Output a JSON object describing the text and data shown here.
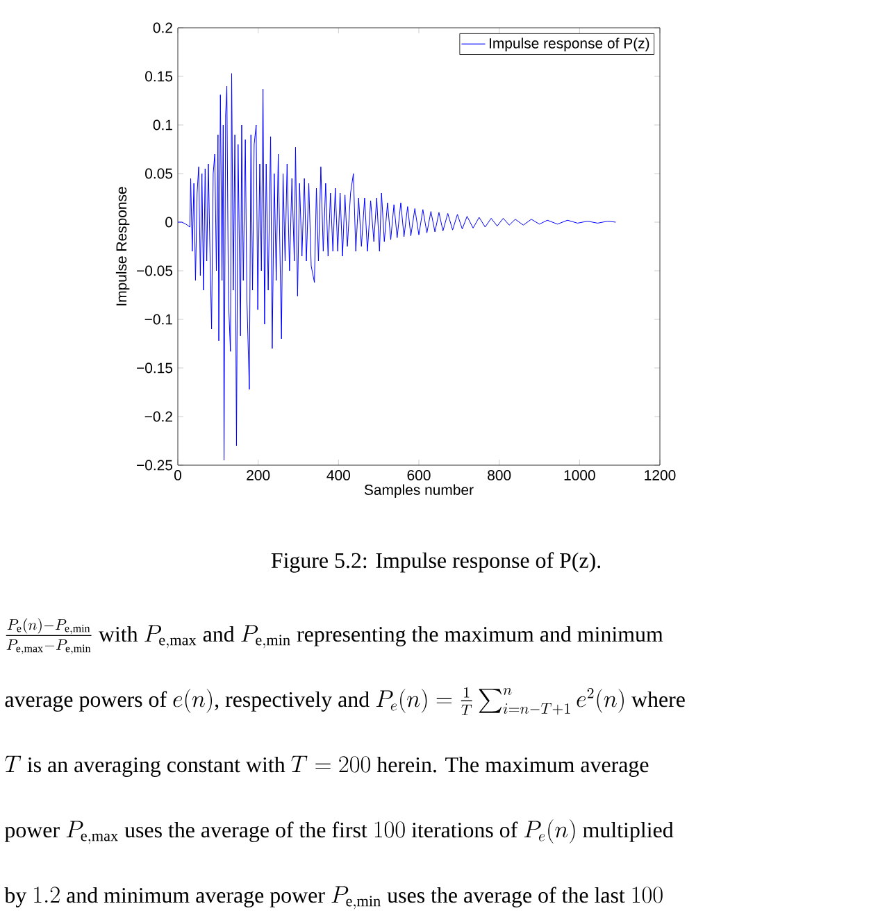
{
  "chart_data": {
    "type": "line",
    "xlabel": "Samples number",
    "ylabel": "Impulse Response",
    "xlim": [
      0,
      1200
    ],
    "xticks": [
      0,
      200,
      400,
      600,
      800,
      1000,
      1200
    ],
    "ylim": [
      -0.25,
      0.2
    ],
    "yticks": [
      {
        "value": -0.25,
        "label": "−0.25"
      },
      {
        "value": -0.2,
        "label": "−0.2"
      },
      {
        "value": -0.15,
        "label": "−0.15"
      },
      {
        "value": -0.1,
        "label": "−0.1"
      },
      {
        "value": -0.05,
        "label": "−0.05"
      },
      0,
      0.05,
      0.1,
      0.15,
      0.2
    ],
    "legend": "top right",
    "grid": false,
    "marker": "none",
    "line_style": "solid",
    "series": [
      {
        "name": "Impulse response of P(z)",
        "color": "#0000ff",
        "x": [
          0,
          10,
          20,
          30,
          32,
          36,
          40,
          44,
          48,
          52,
          56,
          60,
          64,
          68,
          72,
          76,
          80,
          84,
          88,
          92,
          96,
          100,
          102,
          106,
          110,
          113,
          115,
          119,
          122,
          126,
          131,
          134,
          138,
          142,
          146,
          150,
          156,
          159,
          163,
          168,
          172,
          178,
          182,
          186,
          190,
          195,
          199,
          204,
          208,
          212,
          216,
          220,
          225,
          231,
          235,
          240,
          245,
          250,
          258,
          262,
          267,
          272,
          278,
          284,
          290,
          293,
          298,
          303,
          309,
          315,
          320,
          326,
          332,
          340,
          345,
          350,
          356,
          362,
          368,
          374,
          380,
          386,
          392,
          398,
          404,
          410,
          416,
          422,
          430,
          437,
          443,
          450,
          457,
          465,
          472,
          480,
          488,
          495,
          502,
          507,
          514,
          522,
          530,
          538,
          546,
          555,
          563,
          572,
          580,
          590,
          600,
          610,
          620,
          630,
          640,
          650,
          660,
          672,
          684,
          696,
          708,
          720,
          735,
          750,
          765,
          780,
          795,
          810,
          825,
          840,
          860,
          880,
          900,
          920,
          945,
          970,
          995,
          1020,
          1045,
          1070,
          1090
        ],
        "values": [
          0,
          0,
          -0.002,
          -0.005,
          0.045,
          -0.03,
          0.04,
          -0.06,
          0.03,
          0.057,
          -0.055,
          0.05,
          -0.07,
          0.055,
          -0.04,
          0.06,
          -0.03,
          -0.11,
          0.05,
          0.07,
          -0.05,
          0.09,
          -0.122,
          0.131,
          -0.06,
          0.1,
          -0.245,
          0.11,
          0.14,
          -0.08,
          -0.133,
          0.153,
          -0.07,
          0.09,
          -0.23,
          0.08,
          -0.117,
          0.1,
          -0.06,
          0.085,
          -0.08,
          -0.172,
          0.09,
          -0.07,
          0.08,
          0.1,
          -0.09,
          0.06,
          -0.05,
          0.137,
          -0.105,
          0.06,
          -0.07,
          0.088,
          -0.13,
          0.05,
          -0.06,
          0.07,
          -0.12,
          0.05,
          -0.04,
          0.06,
          -0.05,
          0.045,
          -0.04,
          0.077,
          -0.076,
          0.04,
          -0.035,
          0.045,
          -0.04,
          0.04,
          -0.045,
          -0.062,
          0.035,
          -0.04,
          0.057,
          -0.03,
          0.04,
          -0.035,
          0.03,
          -0.03,
          0.035,
          -0.03,
          0.03,
          -0.035,
          0.028,
          -0.025,
          0.03,
          0.05,
          -0.03,
          0.025,
          -0.025,
          0.025,
          -0.03,
          0.022,
          -0.02,
          0.025,
          -0.03,
          0.03,
          -0.02,
          0.02,
          -0.018,
          0.018,
          -0.016,
          0.02,
          -0.015,
          0.016,
          -0.014,
          0.014,
          -0.013,
          0.013,
          -0.011,
          0.011,
          -0.01,
          0.01,
          -0.009,
          0.009,
          -0.008,
          0.008,
          -0.007,
          0.006,
          -0.006,
          0.005,
          -0.005,
          0.004,
          -0.004,
          0.004,
          -0.003,
          0.003,
          -0.003,
          0.003,
          -0.002,
          0.002,
          -0.002,
          0.002,
          -0.001,
          0.001,
          -0.001,
          0.001,
          0
        ]
      }
    ],
    "annotations": [
      "Figure 5.2: Impulse response of P(z).",
      "\\frac{P_{\\mathrm{e}}(n)-P_{\\mathrm{e,min}}}{P_{\\mathrm{e,max}}-P_{\\mathrm{e,min}}}\\text{ with }P_{\\mathrm{e,max}}\\text{ and }P_{\\mathrm{e,min}}\\text{ representing the maximum and minimum}",
      "\\text{average powers of }e(n)\\text{, respectively and }P_{e}(n)=\\frac{1}{T}\\sum_{i=n-T+1}^{n}e^{2}(n)\\text{ where}",
      "T\\text{ is an averaging constant with }T=200\\text{ herein.  The maximum average}",
      "\\text{power }P_{\\mathrm{e,max}}\\text{ uses the average of the first }100\\text{ iterations of }P_{e}(n)\\text{ multiplied}",
      "\\text{by }1.2\\text{ and minimum average power }P_{\\mathrm{e,min}}\\text{ uses the average of the last }100"
    ]
  }
}
